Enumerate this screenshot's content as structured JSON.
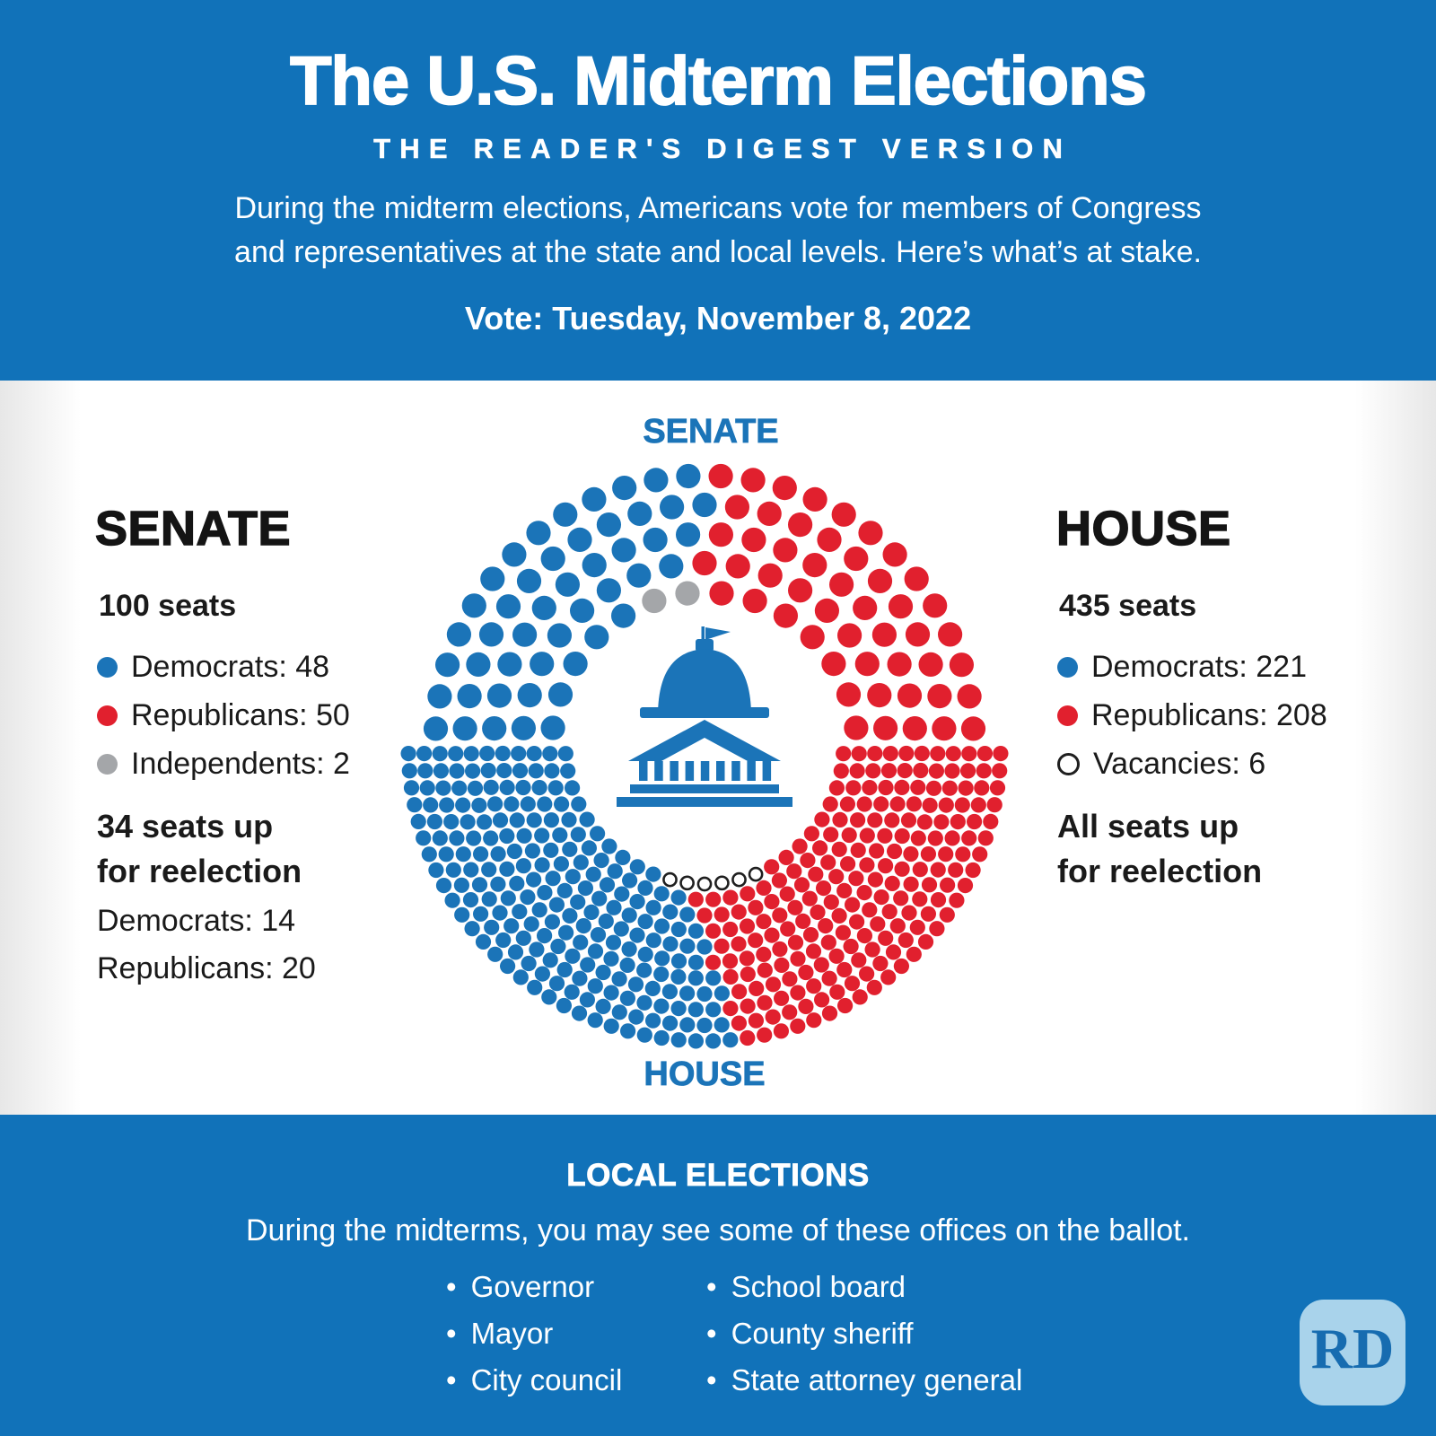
{
  "colors": {
    "band_blue": "#1172b9",
    "dem_blue": "#1b74b8",
    "rep_red": "#e1202e",
    "ind_gray": "#a4a6a9",
    "vacancy_ring": "#1f1f1f",
    "chart_label_blue": "#1b74b8",
    "capitol_blue": "#1b74b8",
    "logo_bg": "#a9d3eb",
    "logo_text_color": "#176cb0"
  },
  "header": {
    "title": "The U.S. Midterm Elections",
    "subtitle": "THE READER'S DIGEST VERSION",
    "description_line1": "During the midterm elections, Americans vote for members of Congress",
    "description_line2": "and representatives at the state and local levels. Here’s what’s at stake.",
    "vote_date": "Vote: Tuesday, November 8, 2022"
  },
  "senate_panel": {
    "heading": "SENATE",
    "seats_label": "100 seats",
    "legend": [
      {
        "label": "Democrats: 48",
        "color": "#1b74b8",
        "type": "filled"
      },
      {
        "label": "Republicans: 50",
        "color": "#e1202e",
        "type": "filled"
      },
      {
        "label": "Independents: 2",
        "color": "#a4a6a9",
        "type": "filled"
      }
    ],
    "reelection_line1": "34 seats up",
    "reelection_line2": "for reelection",
    "reelection_details": [
      "Democrats: 14",
      "Republicans: 20"
    ]
  },
  "house_panel": {
    "heading": "HOUSE",
    "seats_label": "435 seats",
    "legend": [
      {
        "label": "Democrats: 221",
        "color": "#1b74b8",
        "type": "filled"
      },
      {
        "label": "Republicans: 208",
        "color": "#e1202e",
        "type": "filled"
      },
      {
        "label": "Vacancies: 6",
        "type": "open"
      }
    ],
    "reelection_line1": "All seats up",
    "reelection_line2": "for reelection"
  },
  "chart_data": {
    "type": "parliament-donut",
    "top_label": "SENATE",
    "bottom_label": "HOUSE",
    "senate": {
      "total_seats": 100,
      "rows": 5,
      "series": [
        {
          "name": "Democrats",
          "value": 48,
          "color": "#1b74b8"
        },
        {
          "name": "Independents",
          "value": 2,
          "color": "#a4a6a9"
        },
        {
          "name": "Republicans",
          "value": 50,
          "color": "#e1202e"
        }
      ]
    },
    "house": {
      "total_seats": 435,
      "rows": 11,
      "series": [
        {
          "name": "Democrats",
          "value": 221,
          "color": "#1b74b8"
        },
        {
          "name": "Vacancies",
          "value": 6,
          "color": "open"
        },
        {
          "name": "Republicans",
          "value": 208,
          "color": "#e1202e"
        }
      ]
    }
  },
  "footer": {
    "heading": "LOCAL ELECTIONS",
    "description": "During the midterms, you may see some of these offices on the ballot.",
    "columns": [
      [
        "Governor",
        "Mayor",
        "City council"
      ],
      [
        "School board",
        "County sheriff",
        "State attorney general"
      ]
    ],
    "bullet": "•"
  },
  "logo": {
    "text": "RD"
  }
}
